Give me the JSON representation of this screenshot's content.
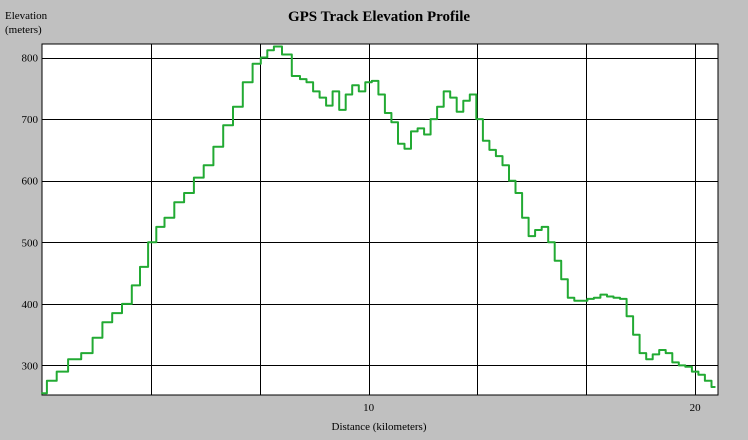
{
  "chart_data": {
    "type": "line",
    "title": "GPS Track Elevation Profile",
    "ylabel_line1": "Elevation",
    "ylabel_line2": "(meters)",
    "xlabel": "Distance (kilometers)",
    "xlim": [
      0,
      20.7
    ],
    "ylim": [
      252,
      822
    ],
    "x_gridlines": [
      3.33,
      6.67,
      10,
      13.33,
      16.67,
      20
    ],
    "y_gridlines": [
      300,
      400,
      500,
      600,
      700,
      800
    ],
    "x_tick_labels": [
      {
        "value": 10,
        "label": "10"
      },
      {
        "value": 20,
        "label": "20"
      }
    ],
    "y_tick_labels": [
      {
        "value": 300,
        "label": "300"
      },
      {
        "value": 400,
        "label": "400"
      },
      {
        "value": 500,
        "label": "500"
      },
      {
        "value": 600,
        "label": "600"
      },
      {
        "value": 700,
        "label": "700"
      },
      {
        "value": 800,
        "label": "800"
      }
    ],
    "grid": true,
    "legend": "none",
    "series": [
      {
        "color": "#22aa33",
        "x": [
          0,
          0.3,
          0.6,
          1.0,
          1.4,
          1.7,
          2.0,
          2.3,
          2.6,
          2.9,
          3.1,
          3.4,
          3.6,
          3.9,
          4.2,
          4.5,
          4.8,
          5.1,
          5.4,
          5.7,
          6.0,
          6.3,
          6.6,
          6.8,
          7.0,
          7.2,
          7.5,
          7.8,
          8.0,
          8.2,
          8.4,
          8.6,
          8.8,
          9.0,
          9.2,
          9.4,
          9.6,
          9.8,
          10.0,
          10.2,
          10.4,
          10.6,
          10.8,
          11.0,
          11.2,
          11.4,
          11.6,
          11.8,
          12.0,
          12.2,
          12.4,
          12.6,
          12.8,
          13.0,
          13.2,
          13.4,
          13.6,
          13.8,
          14.0,
          14.2,
          14.4,
          14.6,
          14.8,
          15.0,
          15.2,
          15.4,
          15.6,
          15.8,
          16.0,
          16.2,
          16.4,
          16.6,
          16.8,
          17.0,
          17.2,
          17.4,
          17.6,
          17.8,
          18.0,
          18.2,
          18.4,
          18.6,
          18.8,
          19.0,
          19.2,
          19.4,
          19.6,
          19.8,
          20.0,
          20.2,
          20.4,
          20.6
        ],
        "y": [
          255,
          275,
          290,
          310,
          320,
          345,
          370,
          385,
          400,
          430,
          460,
          500,
          525,
          540,
          565,
          580,
          605,
          625,
          655,
          690,
          720,
          760,
          790,
          800,
          812,
          818,
          805,
          770,
          765,
          760,
          745,
          735,
          722,
          745,
          715,
          740,
          755,
          745,
          760,
          762,
          740,
          710,
          695,
          660,
          652,
          680,
          685,
          675,
          700,
          720,
          745,
          735,
          712,
          730,
          740,
          700,
          665,
          650,
          640,
          625,
          600,
          580,
          540,
          510,
          520,
          525,
          500,
          470,
          440,
          410,
          405,
          405,
          408,
          410,
          415,
          412,
          410,
          408,
          380,
          350,
          320,
          310,
          318,
          325,
          320,
          305,
          300,
          298,
          290,
          285,
          275,
          265
        ]
      }
    ]
  }
}
